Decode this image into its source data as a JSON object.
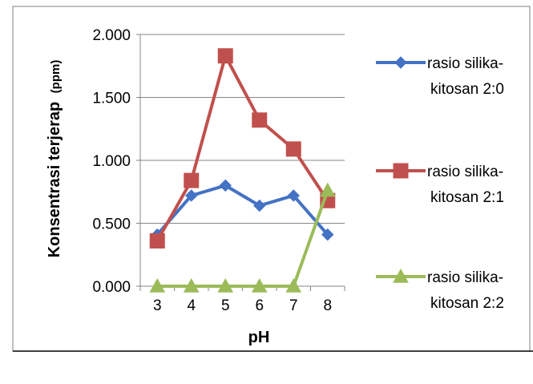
{
  "chart_data": {
    "type": "line",
    "title": "",
    "xlabel": "pH",
    "ylabel": "Konsentrasi terjerap",
    "ylabel_unit": "(ppm)",
    "x": [
      "3",
      "4",
      "5",
      "6",
      "7",
      "8"
    ],
    "ylim": [
      0,
      2
    ],
    "yticks": [
      0,
      0.5,
      1,
      1.5,
      2
    ],
    "ytick_labels": [
      "0.000",
      "0.500",
      "1.000",
      "1.500",
      "2.000"
    ],
    "grid": true,
    "legend_position": "right",
    "series": [
      {
        "name": "rasio silika-kitosan 2:0",
        "name_lines": [
          "rasio silika-",
          "kitosan 2:0"
        ],
        "values": [
          0.41,
          0.72,
          0.8,
          0.64,
          0.72,
          0.41
        ],
        "color": "#4472C4",
        "marker": "diamond"
      },
      {
        "name": "rasio silika-kitosan 2:1",
        "name_lines": [
          "rasio silika-",
          "kitosan 2:1"
        ],
        "values": [
          0.36,
          0.84,
          1.83,
          1.32,
          1.09,
          0.68
        ],
        "color": "#C0504D",
        "marker": "square"
      },
      {
        "name": "rasio silika-kitosan 2:2",
        "name_lines": [
          "rasio silika-",
          "kitosan 2:2"
        ],
        "values": [
          0.0,
          0.0,
          0.0,
          0.0,
          0.0,
          0.76
        ],
        "color": "#9BBB59",
        "marker": "triangle"
      }
    ]
  }
}
